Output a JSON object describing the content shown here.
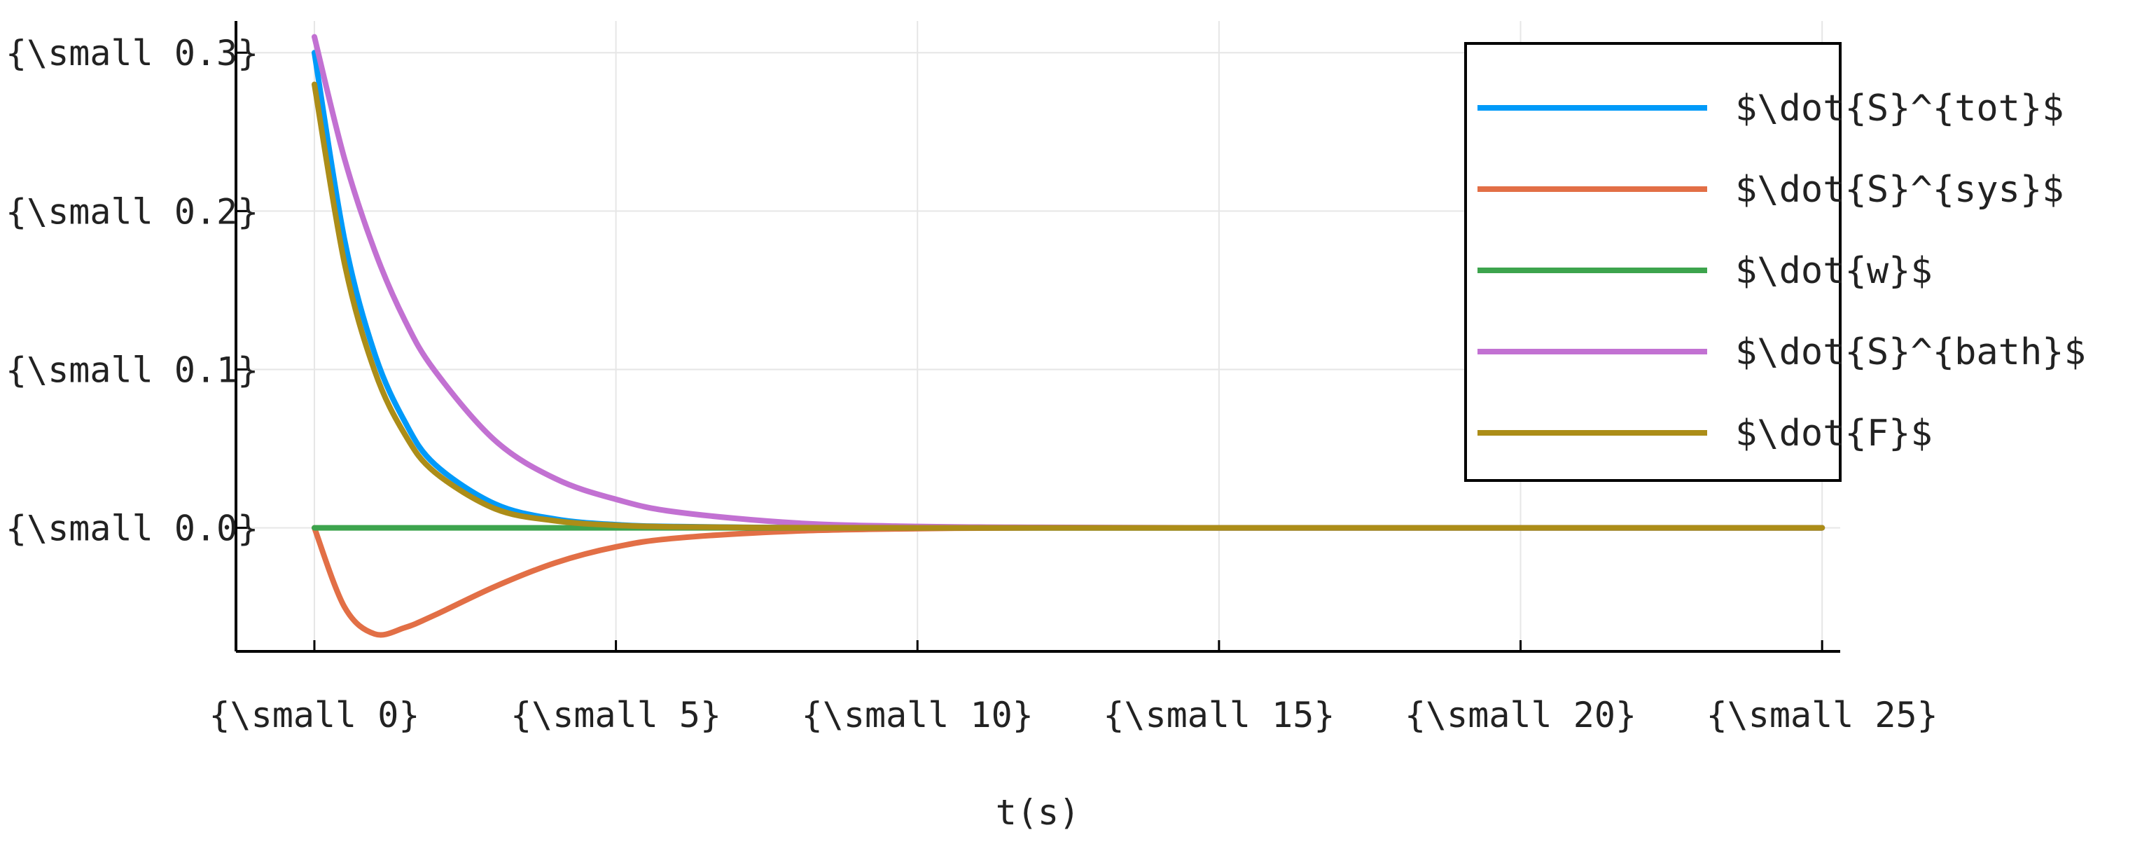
{
  "chart_data": {
    "type": "line",
    "title": "",
    "xlabel": "t(s)",
    "ylabel": "",
    "xlim": [
      -1.3,
      25.3
    ],
    "ylim": [
      -0.078,
      0.32
    ],
    "grid": true,
    "legend_position": "top-right",
    "x_ticks": [
      0,
      5,
      10,
      15,
      20,
      25
    ],
    "x_tick_labels": [
      "{\\small 0}",
      "{\\small 5}",
      "{\\small 10}",
      "{\\small 15}",
      "{\\small 20}",
      "{\\small 25}"
    ],
    "y_ticks": [
      0.0,
      0.1,
      0.2,
      0.3
    ],
    "y_tick_labels": [
      "{\\small 0.0}",
      "{\\small 0.1}",
      "{\\small 0.2}",
      "{\\small 0.3}"
    ],
    "x": [
      0,
      0.5,
      1,
      1.5,
      2,
      3,
      4,
      5,
      6,
      8,
      10,
      12,
      15,
      20,
      25
    ],
    "series": [
      {
        "name": "$\\dot{S}^{tot}$",
        "color": "#009af9",
        "values": [
          0.3,
          0.182,
          0.11,
          0.067,
          0.04,
          0.015,
          0.0055,
          0.002,
          0.0008,
          0.0001,
          0.0,
          0.0,
          0.0,
          0.0,
          0.0
        ]
      },
      {
        "name": "$\\dot{S}^{sys}$",
        "color": "#e26f46",
        "values": [
          0.0,
          -0.05,
          -0.067,
          -0.063,
          -0.055,
          -0.037,
          -0.022,
          -0.012,
          -0.0065,
          -0.002,
          -0.0005,
          0.0,
          0.0,
          0.0,
          0.0
        ]
      },
      {
        "name": "$\\dot{w}$",
        "color": "#3da44d",
        "values": [
          0.0,
          0.0,
          0.0,
          0.0,
          0.0,
          0.0,
          0.0,
          0.0,
          0.0,
          0.0,
          0.0,
          0.0,
          0.0,
          0.0,
          0.0
        ]
      },
      {
        "name": "$\\dot{S}^{bath}$",
        "color": "#c271d2",
        "values": [
          0.31,
          0.233,
          0.175,
          0.131,
          0.099,
          0.055,
          0.031,
          0.018,
          0.01,
          0.003,
          0.0009,
          0.0003,
          0.0,
          0.0,
          0.0
        ]
      },
      {
        "name": "$\\dot{F}$",
        "color": "#ac8d18",
        "values": [
          0.28,
          0.167,
          0.099,
          0.059,
          0.035,
          0.012,
          0.0044,
          0.0016,
          0.0006,
          0.0001,
          0.0,
          0.0,
          0.0,
          0.0,
          0.0
        ]
      }
    ]
  }
}
